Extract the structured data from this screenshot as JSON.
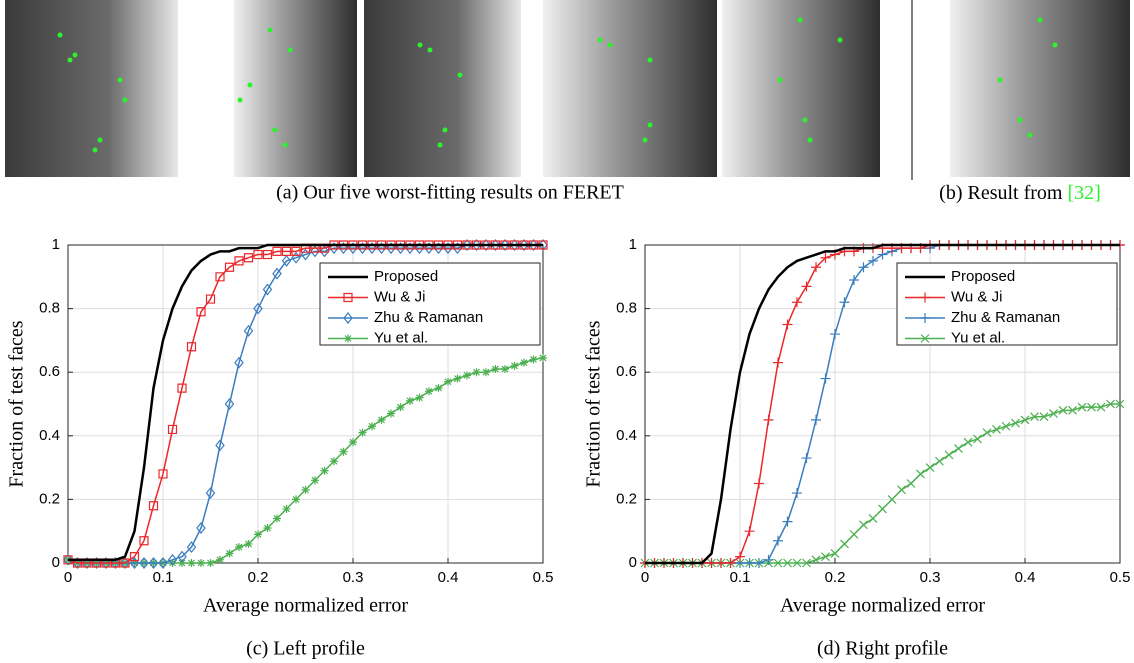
{
  "captions": {
    "top_a": "(a) Our five worst-fitting results on FERET",
    "top_b": "(b) Result from",
    "top_b_ref": "[32]"
  },
  "chart_data": [
    {
      "type": "line",
      "caption": "(c) Left profile",
      "xlabel": "Average normalized error",
      "ylabel": "Fraction of test faces",
      "xlim": [
        0,
        0.5
      ],
      "ylim": [
        0,
        1
      ],
      "xticks": [
        0,
        0.1,
        0.2,
        0.3,
        0.4,
        0.5
      ],
      "yticks": [
        0,
        0.2,
        0.4,
        0.6,
        0.8,
        1
      ],
      "grid": true,
      "legend": "upper right",
      "x": [
        0,
        0.01,
        0.02,
        0.03,
        0.04,
        0.05,
        0.06,
        0.07,
        0.08,
        0.09,
        0.1,
        0.11,
        0.12,
        0.13,
        0.14,
        0.15,
        0.16,
        0.17,
        0.18,
        0.19,
        0.2,
        0.21,
        0.22,
        0.23,
        0.24,
        0.25,
        0.26,
        0.27,
        0.28,
        0.29,
        0.3,
        0.31,
        0.32,
        0.33,
        0.34,
        0.35,
        0.36,
        0.37,
        0.38,
        0.39,
        0.4,
        0.41,
        0.42,
        0.43,
        0.44,
        0.45,
        0.46,
        0.47,
        0.48,
        0.49,
        0.5
      ],
      "series": [
        {
          "name": "Proposed",
          "color": "#000000",
          "marker": null,
          "values": [
            0.01,
            0.01,
            0.01,
            0.01,
            0.01,
            0.01,
            0.02,
            0.1,
            0.3,
            0.55,
            0.7,
            0.8,
            0.87,
            0.92,
            0.95,
            0.97,
            0.98,
            0.98,
            0.99,
            0.99,
            0.99,
            1,
            1,
            1,
            1,
            1,
            1,
            1,
            1,
            1,
            1,
            1,
            1,
            1,
            1,
            1,
            1,
            1,
            1,
            1,
            1,
            1,
            1,
            1,
            1,
            1,
            1,
            1,
            1,
            1,
            1
          ]
        },
        {
          "name": "Wu & Ji",
          "color": "#e8282b",
          "marker": "square",
          "values": [
            0.01,
            0,
            0,
            0,
            0,
            0,
            0,
            0.02,
            0.07,
            0.18,
            0.28,
            0.42,
            0.55,
            0.68,
            0.79,
            0.83,
            0.9,
            0.93,
            0.95,
            0.96,
            0.97,
            0.97,
            0.98,
            0.98,
            0.98,
            0.99,
            0.99,
            0.99,
            1,
            1,
            1,
            1,
            1,
            1,
            1,
            1,
            1,
            1,
            1,
            1,
            1,
            1,
            1,
            1,
            1,
            1,
            1,
            1,
            1,
            1,
            1
          ]
        },
        {
          "name": "Zhu & Ramanan",
          "color": "#3a7dbf",
          "marker": "diamond",
          "values": [
            0.01,
            0,
            0,
            0,
            0,
            0,
            0,
            0,
            0,
            0,
            0,
            0.01,
            0.02,
            0.05,
            0.11,
            0.22,
            0.37,
            0.5,
            0.63,
            0.73,
            0.8,
            0.86,
            0.91,
            0.95,
            0.96,
            0.97,
            0.98,
            0.98,
            0.99,
            0.99,
            0.99,
            0.99,
            0.99,
            0.99,
            0.99,
            0.99,
            0.99,
            0.99,
            0.99,
            0.99,
            0.99,
            0.99,
            1,
            1,
            1,
            1,
            1,
            1,
            1,
            1,
            1
          ]
        },
        {
          "name": "Yu et al.",
          "color": "#4caf50",
          "marker": "asterisk",
          "values": [
            0.01,
            0,
            0,
            0,
            0,
            0,
            0,
            0,
            0,
            0,
            0,
            0,
            0,
            0,
            0,
            0,
            0.01,
            0.03,
            0.05,
            0.06,
            0.09,
            0.11,
            0.14,
            0.17,
            0.2,
            0.23,
            0.26,
            0.29,
            0.32,
            0.35,
            0.38,
            0.41,
            0.43,
            0.45,
            0.47,
            0.49,
            0.51,
            0.52,
            0.54,
            0.55,
            0.57,
            0.58,
            0.59,
            0.6,
            0.6,
            0.61,
            0.61,
            0.62,
            0.63,
            0.64,
            0.645
          ]
        }
      ]
    },
    {
      "type": "line",
      "caption": "(d) Right profile",
      "xlabel": "Average normalized error",
      "ylabel": "Fraction of test faces",
      "xlim": [
        0,
        0.5
      ],
      "ylim": [
        0,
        1
      ],
      "xticks": [
        0,
        0.1,
        0.2,
        0.3,
        0.4,
        0.5
      ],
      "yticks": [
        0,
        0.2,
        0.4,
        0.6,
        0.8,
        1
      ],
      "grid": true,
      "legend": "upper right",
      "x": [
        0,
        0.01,
        0.02,
        0.03,
        0.04,
        0.05,
        0.06,
        0.07,
        0.08,
        0.09,
        0.1,
        0.11,
        0.12,
        0.13,
        0.14,
        0.15,
        0.16,
        0.17,
        0.18,
        0.19,
        0.2,
        0.21,
        0.22,
        0.23,
        0.24,
        0.25,
        0.26,
        0.27,
        0.28,
        0.29,
        0.3,
        0.31,
        0.32,
        0.33,
        0.34,
        0.35,
        0.36,
        0.37,
        0.38,
        0.39,
        0.4,
        0.41,
        0.42,
        0.43,
        0.44,
        0.45,
        0.46,
        0.47,
        0.48,
        0.49,
        0.5
      ],
      "series": [
        {
          "name": "Proposed",
          "color": "#000000",
          "marker": null,
          "values": [
            0,
            0,
            0,
            0,
            0,
            0,
            0,
            0.03,
            0.2,
            0.42,
            0.6,
            0.72,
            0.8,
            0.86,
            0.9,
            0.93,
            0.95,
            0.96,
            0.97,
            0.98,
            0.98,
            0.99,
            0.99,
            0.99,
            0.99,
            1,
            1,
            1,
            1,
            1,
            1,
            1,
            1,
            1,
            1,
            1,
            1,
            1,
            1,
            1,
            1,
            1,
            1,
            1,
            1,
            1,
            1,
            1,
            1,
            1,
            1
          ]
        },
        {
          "name": "Wu & Ji",
          "color": "#e8282b",
          "marker": "plus",
          "values": [
            0,
            0,
            0,
            0,
            0,
            0,
            0,
            0,
            0,
            0,
            0.02,
            0.1,
            0.25,
            0.45,
            0.63,
            0.75,
            0.82,
            0.87,
            0.93,
            0.96,
            0.97,
            0.98,
            0.98,
            0.99,
            0.99,
            0.99,
            0.99,
            0.99,
            0.99,
            0.99,
            1,
            1,
            1,
            1,
            1,
            1,
            1,
            1,
            1,
            1,
            1,
            1,
            1,
            1,
            1,
            1,
            1,
            1,
            1,
            1,
            1
          ]
        },
        {
          "name": "Zhu & Ramanan",
          "color": "#3a7dbf",
          "marker": "plus",
          "values": [
            0,
            0,
            0,
            0,
            0,
            0,
            0,
            0,
            0,
            0,
            0,
            0,
            0,
            0.01,
            0.07,
            0.13,
            0.22,
            0.33,
            0.45,
            0.58,
            0.72,
            0.82,
            0.89,
            0.93,
            0.95,
            0.97,
            0.98,
            0.99,
            0.99,
            0.99,
            0.99,
            1,
            1,
            1,
            1,
            1,
            1,
            1,
            1,
            1,
            1,
            1,
            1,
            1,
            1,
            1,
            1,
            1,
            1,
            1,
            1
          ]
        },
        {
          "name": "Yu et al.",
          "color": "#4caf50",
          "marker": "x",
          "values": [
            0,
            0,
            0,
            0,
            0,
            0,
            0,
            0,
            0,
            0,
            0,
            0,
            0,
            0,
            0,
            0,
            0,
            0,
            0.01,
            0.02,
            0.03,
            0.06,
            0.09,
            0.12,
            0.14,
            0.17,
            0.2,
            0.23,
            0.25,
            0.28,
            0.3,
            0.32,
            0.34,
            0.36,
            0.38,
            0.39,
            0.41,
            0.42,
            0.43,
            0.44,
            0.45,
            0.46,
            0.46,
            0.47,
            0.48,
            0.48,
            0.49,
            0.49,
            0.49,
            0.5,
            0.5
          ]
        }
      ]
    }
  ]
}
